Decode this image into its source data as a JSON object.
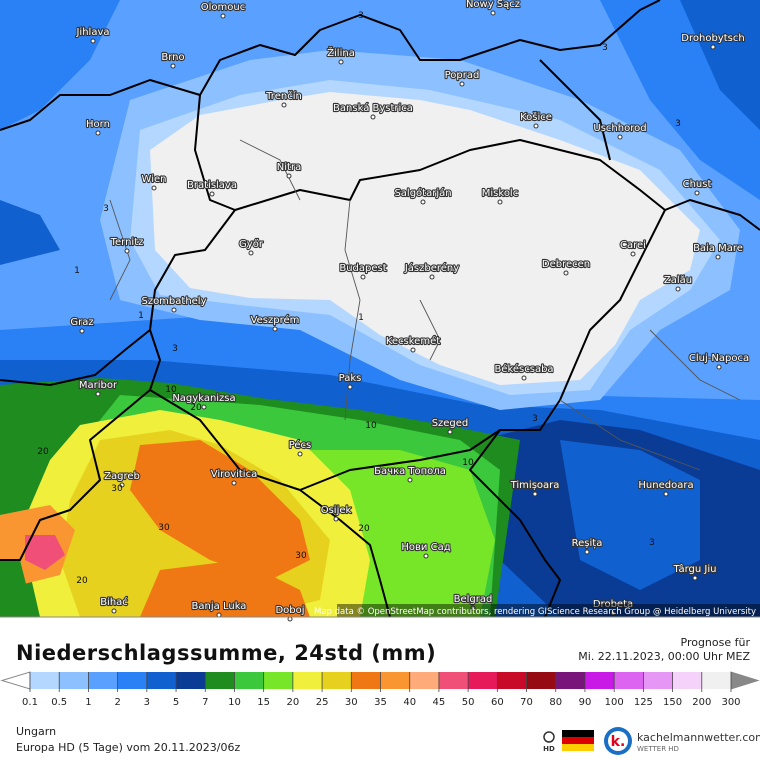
{
  "map": {
    "cities": [
      "Olomouc",
      "Nowy Sącz",
      "Jihlava",
      "Brno",
      "Žilina",
      "Drohobytsch",
      "Poprad",
      "Trenčín",
      "Banská Bystrica",
      "Horn",
      "Košice",
      "Uschhorod",
      "Nitra",
      "Wien",
      "Bratislava",
      "Salgótarján",
      "Miskolc",
      "Chust",
      "Ternitz",
      "Győr",
      "Carei",
      "Baia Mare",
      "Budapest",
      "Jászberény",
      "Debrecen",
      "Szombathely",
      "Zalău",
      "Graz",
      "Veszprém",
      "Cluj-Napoca",
      "Kecskemét",
      "Békéscsaba",
      "Maribor",
      "Paks",
      "Nagykanizsa",
      "Szeged",
      "Pécs",
      "Бачка Топола",
      "Zagreb",
      "Virovitica",
      "Timișoara",
      "Hunedoara",
      "Osijek",
      "Нови Сад",
      "Reșița",
      "Târgu Jiu",
      "Belgrad",
      "Bihać",
      "Banja Luka",
      "Doboj",
      "Drobeta"
    ],
    "contour_labels": [
      3,
      3,
      3,
      3,
      3,
      3,
      3,
      1,
      1,
      1,
      10,
      10,
      10,
      20,
      20,
      20,
      20,
      30,
      30,
      30
    ],
    "attribution": "Map data © OpenStreetMap contributors, rendering GIScience Research Group @ Heidelberg University"
  },
  "legend": {
    "title": "Niederschlagssumme, 24std (mm)",
    "forecast_label": "Prognose für",
    "forecast_time": "Mi. 22.11.2023, 00:00 Uhr MEZ",
    "values": [
      0.1,
      0.5,
      1,
      2,
      3,
      5,
      7,
      10,
      15,
      20,
      25,
      30,
      35,
      40,
      45,
      50,
      60,
      70,
      80,
      90,
      100,
      125,
      150,
      200,
      300
    ],
    "colors": [
      "#b4d7ff",
      "#8cc0ff",
      "#5aa0ff",
      "#2a80f5",
      "#1060d0",
      "#0a3c96",
      "#1e8c1e",
      "#3cc83c",
      "#78e628",
      "#f0f03c",
      "#e6d21e",
      "#f07814",
      "#fa9632",
      "#ffaa78",
      "#f05078",
      "#e6195a",
      "#c80a28",
      "#960a14",
      "#78147a",
      "#c819e6",
      "#dc64f0",
      "#e696f5",
      "#f5d2fa",
      "#f0f0f0",
      "#d2d2d2"
    ]
  },
  "footer": {
    "region": "Ungarn",
    "model": "Europa HD (5 Tage) vom  20.11.2023/06z",
    "badge": "HD",
    "brand": "kachelmannwetter.com",
    "brand_sub": "WETTER HD",
    "logo": "k."
  }
}
